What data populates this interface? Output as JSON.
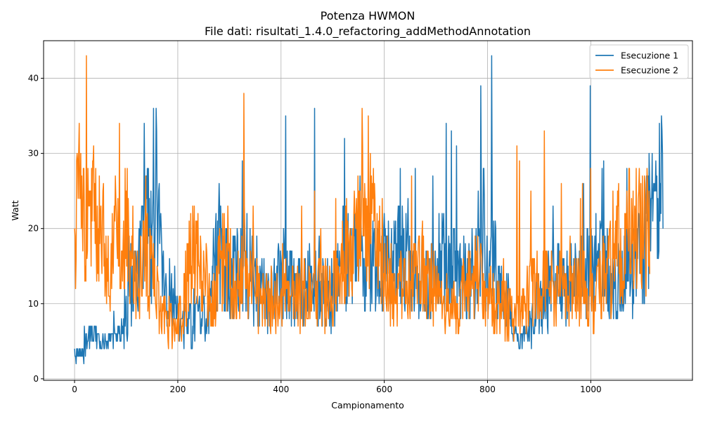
{
  "chart_data": {
    "type": "line",
    "title": "Potenza HWMON",
    "subtitle": "File dati: risultati_1.4.0_refactoring_addMethodAnnotation",
    "xlabel": "Campionamento",
    "ylabel": "Watt",
    "xlim": [
      -60,
      1197
    ],
    "ylim": [
      -0.2,
      45
    ],
    "xticks": [
      0,
      200,
      400,
      600,
      800,
      1000
    ],
    "yticks": [
      0,
      10,
      20,
      30,
      40
    ],
    "grid": true,
    "legend_position": "top-right",
    "series": [
      {
        "name": "Esecuzione 1",
        "color": "#1f77b4",
        "anchors": [
          [
            0,
            3
          ],
          [
            10,
            3
          ],
          [
            20,
            4
          ],
          [
            30,
            6
          ],
          [
            40,
            6
          ],
          [
            50,
            5
          ],
          [
            60,
            5
          ],
          [
            70,
            5
          ],
          [
            80,
            6
          ],
          [
            90,
            6
          ],
          [
            100,
            8
          ],
          [
            110,
            12
          ],
          [
            120,
            13
          ],
          [
            130,
            16
          ],
          [
            140,
            20
          ],
          [
            150,
            17
          ],
          [
            160,
            22
          ],
          [
            170,
            13
          ],
          [
            180,
            11
          ],
          [
            190,
            11
          ],
          [
            200,
            9
          ],
          [
            210,
            8
          ],
          [
            220,
            7
          ],
          [
            230,
            7
          ],
          [
            240,
            8
          ],
          [
            250,
            8
          ],
          [
            260,
            8
          ],
          [
            270,
            15
          ],
          [
            280,
            17
          ],
          [
            290,
            15
          ],
          [
            300,
            14
          ],
          [
            310,
            14
          ],
          [
            320,
            14
          ],
          [
            330,
            16
          ],
          [
            340,
            14
          ],
          [
            350,
            13
          ],
          [
            360,
            12
          ],
          [
            380,
            11
          ],
          [
            400,
            13
          ],
          [
            420,
            12
          ],
          [
            440,
            12
          ],
          [
            460,
            13
          ],
          [
            480,
            12
          ],
          [
            500,
            11
          ],
          [
            520,
            16
          ],
          [
            540,
            17
          ],
          [
            560,
            16
          ],
          [
            580,
            15
          ],
          [
            600,
            16
          ],
          [
            620,
            17
          ],
          [
            640,
            16
          ],
          [
            660,
            14
          ],
          [
            680,
            13
          ],
          [
            700,
            14
          ],
          [
            720,
            16
          ],
          [
            740,
            14
          ],
          [
            760,
            13
          ],
          [
            780,
            16
          ],
          [
            790,
            22
          ],
          [
            800,
            14
          ],
          [
            810,
            18
          ],
          [
            820,
            12
          ],
          [
            840,
            9
          ],
          [
            850,
            6
          ],
          [
            860,
            5
          ],
          [
            880,
            7
          ],
          [
            900,
            10
          ],
          [
            920,
            12
          ],
          [
            940,
            13
          ],
          [
            960,
            13
          ],
          [
            980,
            14
          ],
          [
            1000,
            15
          ],
          [
            1020,
            15
          ],
          [
            1040,
            14
          ],
          [
            1060,
            14
          ],
          [
            1080,
            15
          ],
          [
            1100,
            16
          ],
          [
            1110,
            22
          ],
          [
            1120,
            22
          ],
          [
            1130,
            24
          ],
          [
            1140,
            26
          ]
        ],
        "peaks": [
          [
            158,
            36
          ],
          [
            465,
            36
          ],
          [
            808,
            43
          ],
          [
            999,
            39
          ],
          [
            787,
            39
          ],
          [
            409,
            35
          ],
          [
            523,
            32
          ],
          [
            1138,
            33
          ],
          [
            720,
            34
          ],
          [
            740,
            31
          ],
          [
            730,
            33
          ],
          [
            280,
            26
          ],
          [
            325,
            29
          ],
          [
            986,
            26
          ],
          [
            1070,
            28
          ]
        ]
      },
      {
        "name": "Esecuzione 2",
        "color": "#ff7f0e",
        "anchors": [
          [
            0,
            22
          ],
          [
            10,
            24
          ],
          [
            20,
            23
          ],
          [
            30,
            21
          ],
          [
            40,
            20
          ],
          [
            50,
            19
          ],
          [
            60,
            18
          ],
          [
            70,
            14
          ],
          [
            80,
            18
          ],
          [
            90,
            19
          ],
          [
            100,
            20
          ],
          [
            110,
            17
          ],
          [
            120,
            13
          ],
          [
            130,
            14
          ],
          [
            140,
            16
          ],
          [
            150,
            14
          ],
          [
            160,
            10
          ],
          [
            170,
            8
          ],
          [
            180,
            8
          ],
          [
            190,
            7
          ],
          [
            200,
            8
          ],
          [
            210,
            9
          ],
          [
            220,
            15
          ],
          [
            230,
            17
          ],
          [
            240,
            17
          ],
          [
            250,
            15
          ],
          [
            260,
            11
          ],
          [
            270,
            11
          ],
          [
            280,
            14
          ],
          [
            290,
            16
          ],
          [
            300,
            15
          ],
          [
            310,
            13
          ],
          [
            320,
            13
          ],
          [
            330,
            14
          ],
          [
            340,
            12
          ],
          [
            350,
            11
          ],
          [
            360,
            10
          ],
          [
            380,
            10
          ],
          [
            400,
            11
          ],
          [
            420,
            11
          ],
          [
            440,
            11
          ],
          [
            460,
            11
          ],
          [
            480,
            11
          ],
          [
            500,
            11
          ],
          [
            520,
            16
          ],
          [
            540,
            18
          ],
          [
            560,
            22
          ],
          [
            580,
            20
          ],
          [
            600,
            16
          ],
          [
            620,
            11
          ],
          [
            640,
            12
          ],
          [
            660,
            13
          ],
          [
            680,
            15
          ],
          [
            700,
            11
          ],
          [
            720,
            10
          ],
          [
            740,
            10
          ],
          [
            760,
            12
          ],
          [
            780,
            14
          ],
          [
            800,
            11
          ],
          [
            820,
            9
          ],
          [
            840,
            9
          ],
          [
            860,
            9
          ],
          [
            880,
            11
          ],
          [
            900,
            12
          ],
          [
            920,
            13
          ],
          [
            940,
            12
          ],
          [
            960,
            12
          ],
          [
            980,
            12
          ],
          [
            1000,
            11
          ],
          [
            1020,
            13
          ],
          [
            1040,
            15
          ],
          [
            1060,
            17
          ],
          [
            1080,
            20
          ],
          [
            1100,
            21
          ],
          [
            1110,
            20
          ],
          [
            1115,
            17
          ]
        ],
        "peaks": [
          [
            328,
            38
          ],
          [
            557,
            36
          ],
          [
            569,
            35
          ],
          [
            465,
            25
          ],
          [
            4,
            29
          ],
          [
            17,
            28
          ],
          [
            857,
            31
          ],
          [
            910,
            33
          ],
          [
            862,
            29
          ],
          [
            943,
            26
          ],
          [
            1000,
            28
          ],
          [
            980,
            24
          ],
          [
            1075,
            28
          ],
          [
            1100,
            27
          ]
        ]
      }
    ]
  }
}
